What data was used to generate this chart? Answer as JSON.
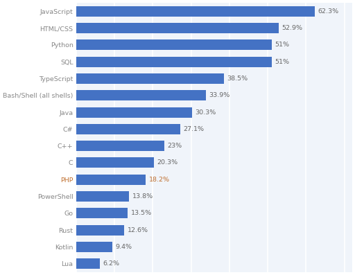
{
  "categories": [
    "JavaScript",
    "HTML/CSS",
    "Python",
    "SQL",
    "TypeScript",
    "Bash/Shell (all shells)",
    "Java",
    "C#",
    "C++",
    "C",
    "PHP",
    "PowerShell",
    "Go",
    "Rust",
    "Kotlin",
    "Lua"
  ],
  "values": [
    62.3,
    52.9,
    51.0,
    51.0,
    38.5,
    33.9,
    30.3,
    27.1,
    23.0,
    20.3,
    18.2,
    13.8,
    13.5,
    12.6,
    9.4,
    6.2
  ],
  "labels": [
    "62.3%",
    "52.9%",
    "51%",
    "51%",
    "38.5%",
    "33.9%",
    "30.3%",
    "27.1%",
    "23%",
    "20.3%",
    "18.2%",
    "13.8%",
    "13.5%",
    "12.6%",
    "9.4%",
    "6.2%"
  ],
  "bar_color": "#4472c4",
  "php_bar_color": "#4472c4",
  "background_color": "#ffffff",
  "plot_bg_color": "#f0f4fa",
  "label_color": "#888888",
  "value_color": "#666666",
  "php_label_color": "#c07030",
  "grid_color": "#ffffff",
  "bar_height": 0.62,
  "xlim": [
    0,
    72
  ],
  "label_fontsize": 6.8,
  "value_fontsize": 6.8,
  "grid_linewidth": 1.2
}
